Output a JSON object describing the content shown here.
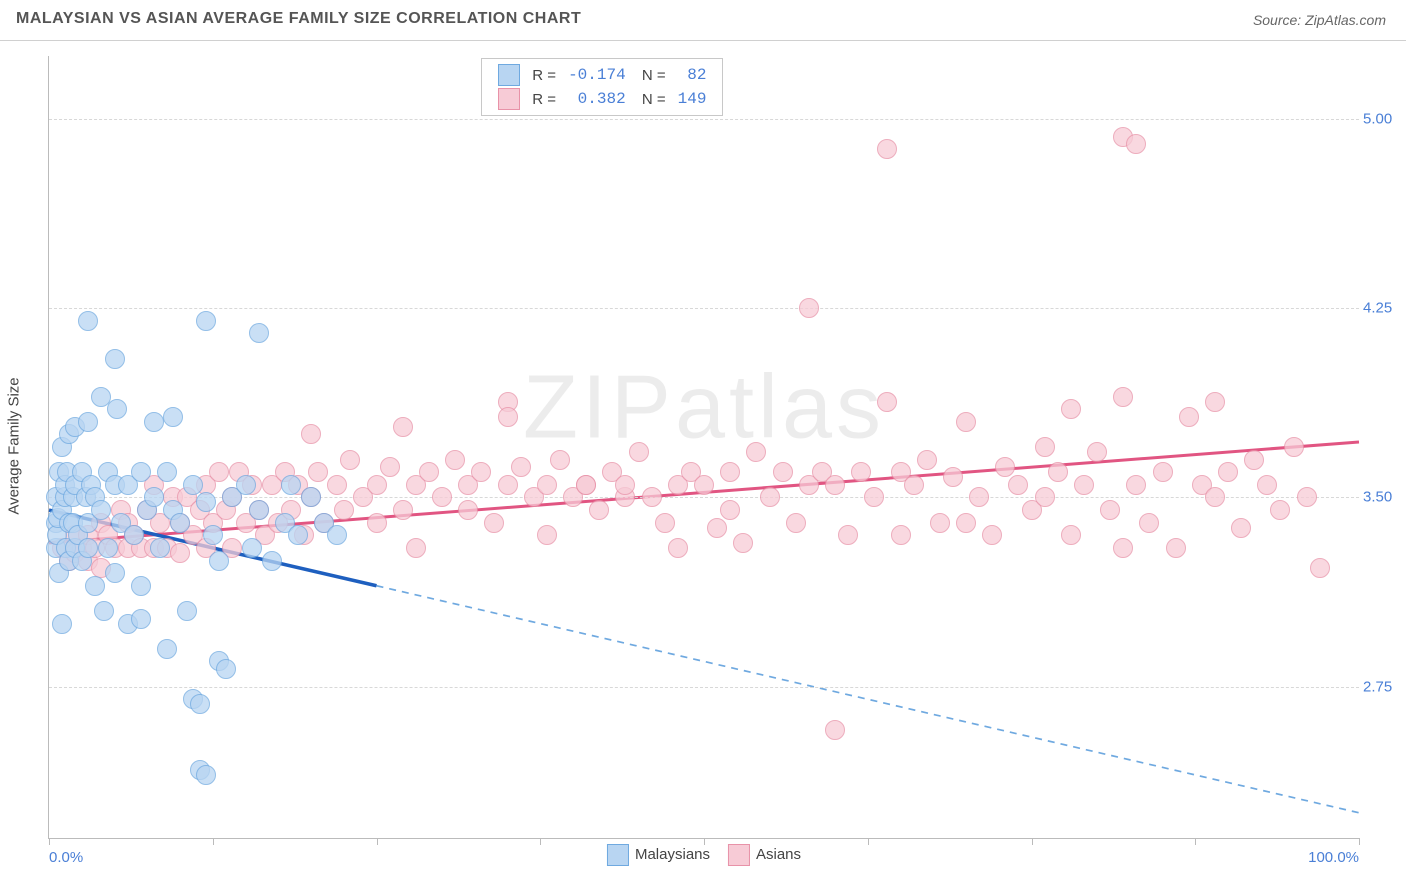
{
  "title": "MALAYSIAN VS ASIAN AVERAGE FAMILY SIZE CORRELATION CHART",
  "source": "Source: ZipAtlas.com",
  "watermark": "ZIPatlas",
  "chart": {
    "type": "scatter",
    "ylabel": "Average Family Size",
    "xlim": [
      0,
      100
    ],
    "ylim": [
      2.15,
      5.25
    ],
    "xticks": [
      0,
      12.5,
      25,
      37.5,
      50,
      62.5,
      75,
      87.5,
      100
    ],
    "xtick_labels_shown": {
      "0": "0.0%",
      "100": "100.0%"
    },
    "yticks": [
      2.75,
      3.5,
      4.25,
      5.0
    ],
    "ytick_labels": [
      "2.75",
      "3.50",
      "4.25",
      "5.00"
    ],
    "background_color": "#ffffff",
    "grid_color": "#d8d8d8",
    "marker_radius": 10,
    "marker_border_width": 1.5,
    "series": {
      "malaysians": {
        "label": "Malaysians",
        "fill": "#b8d5f2",
        "stroke": "#6fa9e0",
        "line_color": "#1e5fbf",
        "line_width": 3.5,
        "line_dash_after_x": 25,
        "dash_color": "#6fa9e0",
        "R": "-0.174",
        "N": "82",
        "trend": {
          "x1": 0,
          "y1": 3.45,
          "x2": 100,
          "y2": 2.25
        },
        "points": [
          [
            0.5,
            3.3
          ],
          [
            0.5,
            3.4
          ],
          [
            0.5,
            3.5
          ],
          [
            0.6,
            3.35
          ],
          [
            0.7,
            3.42
          ],
          [
            0.8,
            3.2
          ],
          [
            0.8,
            3.6
          ],
          [
            1.0,
            3.45
          ],
          [
            1.0,
            3.7
          ],
          [
            1.0,
            3.0
          ],
          [
            1.2,
            3.5
          ],
          [
            1.2,
            3.55
          ],
          [
            1.3,
            3.3
          ],
          [
            1.4,
            3.6
          ],
          [
            1.5,
            3.4
          ],
          [
            1.5,
            3.25
          ],
          [
            1.5,
            3.75
          ],
          [
            1.8,
            3.5
          ],
          [
            1.8,
            3.4
          ],
          [
            2.0,
            3.55
          ],
          [
            2.0,
            3.3
          ],
          [
            2.0,
            3.78
          ],
          [
            2.2,
            3.35
          ],
          [
            2.5,
            3.6
          ],
          [
            2.5,
            3.25
          ],
          [
            2.8,
            3.5
          ],
          [
            3.0,
            3.4
          ],
          [
            3.0,
            3.3
          ],
          [
            3.0,
            3.8
          ],
          [
            3.2,
            3.55
          ],
          [
            3.5,
            3.15
          ],
          [
            3.5,
            3.5
          ],
          [
            4.0,
            3.45
          ],
          [
            4.0,
            3.9
          ],
          [
            4.2,
            3.05
          ],
          [
            4.5,
            3.6
          ],
          [
            4.5,
            3.3
          ],
          [
            5.0,
            3.55
          ],
          [
            5.0,
            3.2
          ],
          [
            5.2,
            3.85
          ],
          [
            5.5,
            3.4
          ],
          [
            6.0,
            3.55
          ],
          [
            6.0,
            3.0
          ],
          [
            6.5,
            3.35
          ],
          [
            7.0,
            3.6
          ],
          [
            7.0,
            3.15
          ],
          [
            7.5,
            3.45
          ],
          [
            8.0,
            3.5
          ],
          [
            8.0,
            3.8
          ],
          [
            8.5,
            3.3
          ],
          [
            9.0,
            3.6
          ],
          [
            9.0,
            2.9
          ],
          [
            9.5,
            3.45
          ],
          [
            10.0,
            3.4
          ],
          [
            10.5,
            3.05
          ],
          [
            11.0,
            3.55
          ],
          [
            11.0,
            2.7
          ],
          [
            11.5,
            2.68
          ],
          [
            12.0,
            3.48
          ],
          [
            12.0,
            4.2
          ],
          [
            12.5,
            3.35
          ],
          [
            13.0,
            3.25
          ],
          [
            13.0,
            2.85
          ],
          [
            13.5,
            2.82
          ],
          [
            14.0,
            3.5
          ],
          [
            15.0,
            3.55
          ],
          [
            15.5,
            3.3
          ],
          [
            16.0,
            4.15
          ],
          [
            16.0,
            3.45
          ],
          [
            17.0,
            3.25
          ],
          [
            18.0,
            3.4
          ],
          [
            18.5,
            3.55
          ],
          [
            19.0,
            3.35
          ],
          [
            20.0,
            3.5
          ],
          [
            21.0,
            3.4
          ],
          [
            22.0,
            3.35
          ],
          [
            3.0,
            4.2
          ],
          [
            5.0,
            4.05
          ],
          [
            7.0,
            3.02
          ],
          [
            9.5,
            3.82
          ],
          [
            11.5,
            2.42
          ],
          [
            12.0,
            2.4
          ]
        ]
      },
      "asians": {
        "label": "Asians",
        "fill": "#f7cbd6",
        "stroke": "#e892a8",
        "line_color": "#e15582",
        "line_width": 3,
        "R": "0.382",
        "N": "149",
        "trend": {
          "x1": 0,
          "y1": 3.32,
          "x2": 100,
          "y2": 3.72
        },
        "points": [
          [
            1.0,
            3.3
          ],
          [
            1.5,
            3.25
          ],
          [
            2.0,
            3.35
          ],
          [
            2.0,
            3.28
          ],
          [
            2.5,
            3.3
          ],
          [
            3.0,
            3.35
          ],
          [
            3.0,
            3.25
          ],
          [
            3.5,
            3.3
          ],
          [
            4.0,
            3.4
          ],
          [
            4.0,
            3.22
          ],
          [
            4.5,
            3.35
          ],
          [
            5.0,
            3.3
          ],
          [
            5.5,
            3.45
          ],
          [
            6.0,
            3.3
          ],
          [
            6.0,
            3.4
          ],
          [
            6.5,
            3.35
          ],
          [
            7.0,
            3.3
          ],
          [
            7.5,
            3.45
          ],
          [
            8.0,
            3.55
          ],
          [
            8.0,
            3.3
          ],
          [
            8.5,
            3.4
          ],
          [
            9.0,
            3.3
          ],
          [
            9.5,
            3.5
          ],
          [
            10.0,
            3.4
          ],
          [
            10.0,
            3.28
          ],
          [
            10.5,
            3.5
          ],
          [
            11.0,
            3.35
          ],
          [
            11.5,
            3.45
          ],
          [
            12.0,
            3.55
          ],
          [
            12.0,
            3.3
          ],
          [
            12.5,
            3.4
          ],
          [
            13.0,
            3.6
          ],
          [
            13.5,
            3.45
          ],
          [
            14.0,
            3.5
          ],
          [
            14.0,
            3.3
          ],
          [
            14.5,
            3.6
          ],
          [
            15.0,
            3.4
          ],
          [
            15.5,
            3.55
          ],
          [
            16.0,
            3.45
          ],
          [
            16.5,
            3.35
          ],
          [
            17.0,
            3.55
          ],
          [
            17.5,
            3.4
          ],
          [
            18.0,
            3.6
          ],
          [
            18.5,
            3.45
          ],
          [
            19.0,
            3.55
          ],
          [
            19.5,
            3.35
          ],
          [
            20.0,
            3.5
          ],
          [
            20.5,
            3.6
          ],
          [
            21.0,
            3.4
          ],
          [
            22.0,
            3.55
          ],
          [
            22.5,
            3.45
          ],
          [
            23.0,
            3.65
          ],
          [
            24.0,
            3.5
          ],
          [
            25.0,
            3.55
          ],
          [
            25.0,
            3.4
          ],
          [
            26.0,
            3.62
          ],
          [
            27.0,
            3.45
          ],
          [
            28.0,
            3.55
          ],
          [
            28.0,
            3.3
          ],
          [
            29.0,
            3.6
          ],
          [
            30.0,
            3.5
          ],
          [
            31.0,
            3.65
          ],
          [
            32.0,
            3.45
          ],
          [
            32.0,
            3.55
          ],
          [
            33.0,
            3.6
          ],
          [
            34.0,
            3.4
          ],
          [
            35.0,
            3.55
          ],
          [
            35.0,
            3.88
          ],
          [
            36.0,
            3.62
          ],
          [
            37.0,
            3.5
          ],
          [
            38.0,
            3.55
          ],
          [
            38.0,
            3.35
          ],
          [
            39.0,
            3.65
          ],
          [
            40.0,
            3.5
          ],
          [
            41.0,
            3.55
          ],
          [
            42.0,
            3.45
          ],
          [
            43.0,
            3.6
          ],
          [
            44.0,
            3.5
          ],
          [
            44.0,
            3.55
          ],
          [
            45.0,
            3.68
          ],
          [
            46.0,
            3.5
          ],
          [
            47.0,
            3.4
          ],
          [
            48.0,
            3.55
          ],
          [
            48.0,
            3.3
          ],
          [
            49.0,
            3.6
          ],
          [
            50.0,
            3.55
          ],
          [
            51.0,
            3.38
          ],
          [
            52.0,
            3.6
          ],
          [
            52.0,
            3.45
          ],
          [
            53.0,
            3.32
          ],
          [
            54.0,
            3.68
          ],
          [
            55.0,
            3.5
          ],
          [
            56.0,
            3.6
          ],
          [
            57.0,
            3.4
          ],
          [
            58.0,
            4.25
          ],
          [
            58.0,
            3.55
          ],
          [
            59.0,
            3.6
          ],
          [
            60.0,
            3.55
          ],
          [
            61.0,
            3.35
          ],
          [
            62.0,
            3.6
          ],
          [
            63.0,
            3.5
          ],
          [
            64.0,
            3.88
          ],
          [
            65.0,
            3.6
          ],
          [
            65.0,
            3.35
          ],
          [
            66.0,
            3.55
          ],
          [
            67.0,
            3.65
          ],
          [
            68.0,
            3.4
          ],
          [
            69.0,
            3.58
          ],
          [
            70.0,
            3.8
          ],
          [
            71.0,
            3.5
          ],
          [
            72.0,
            3.35
          ],
          [
            73.0,
            3.62
          ],
          [
            74.0,
            3.55
          ],
          [
            75.0,
            3.45
          ],
          [
            76.0,
            3.7
          ],
          [
            76.0,
            3.5
          ],
          [
            77.0,
            3.6
          ],
          [
            78.0,
            3.35
          ],
          [
            79.0,
            3.55
          ],
          [
            80.0,
            3.68
          ],
          [
            81.0,
            3.45
          ],
          [
            82.0,
            3.3
          ],
          [
            82.0,
            3.9
          ],
          [
            83.0,
            3.55
          ],
          [
            84.0,
            3.4
          ],
          [
            85.0,
            3.6
          ],
          [
            86.0,
            3.3
          ],
          [
            87.0,
            3.82
          ],
          [
            88.0,
            3.55
          ],
          [
            89.0,
            3.5
          ],
          [
            90.0,
            3.6
          ],
          [
            91.0,
            3.38
          ],
          [
            92.0,
            3.65
          ],
          [
            93.0,
            3.55
          ],
          [
            94.0,
            3.45
          ],
          [
            95.0,
            3.7
          ],
          [
            96.0,
            3.5
          ],
          [
            97.0,
            3.22
          ],
          [
            64.0,
            4.88
          ],
          [
            82.0,
            4.93
          ],
          [
            83.0,
            4.9
          ],
          [
            60.0,
            2.58
          ],
          [
            35.0,
            3.82
          ],
          [
            20.0,
            3.75
          ],
          [
            27.0,
            3.78
          ],
          [
            78.0,
            3.85
          ],
          [
            70.0,
            3.4
          ],
          [
            89.0,
            3.88
          ],
          [
            41.0,
            3.55
          ]
        ]
      }
    }
  }
}
